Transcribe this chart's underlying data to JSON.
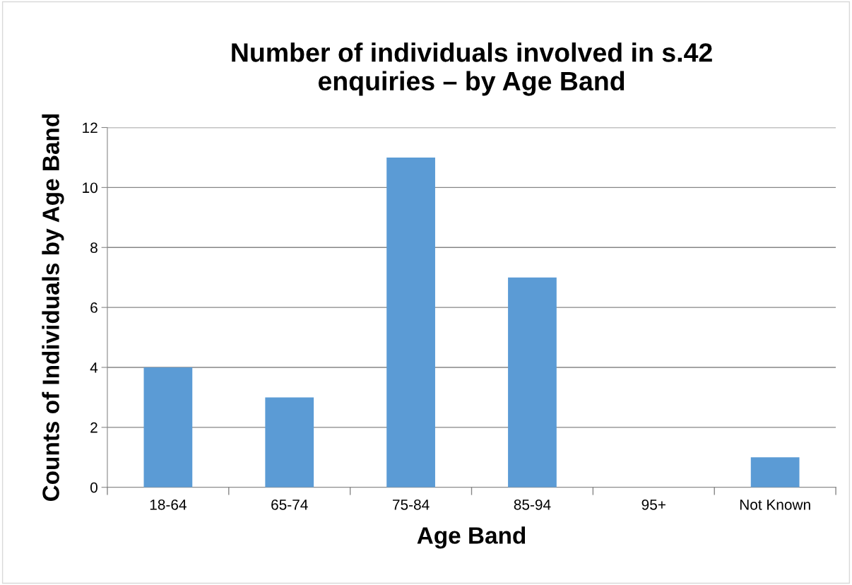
{
  "chart_data": {
    "type": "bar",
    "title": "Number of individuals involved in s.42\nenquiries – by Age Band",
    "xlabel": "Age Band",
    "ylabel": "Counts of Individuals by Age Band",
    "categories": [
      "18-64",
      "65-74",
      "75-84",
      "85-94",
      "95+",
      "Not Known"
    ],
    "values": [
      4,
      3,
      11,
      7,
      0,
      1
    ],
    "color": "#5b9bd5",
    "ylim": [
      0,
      12
    ],
    "yticks": [
      0,
      2,
      4,
      6,
      8,
      10,
      12
    ],
    "grid": "y",
    "legend": false
  }
}
